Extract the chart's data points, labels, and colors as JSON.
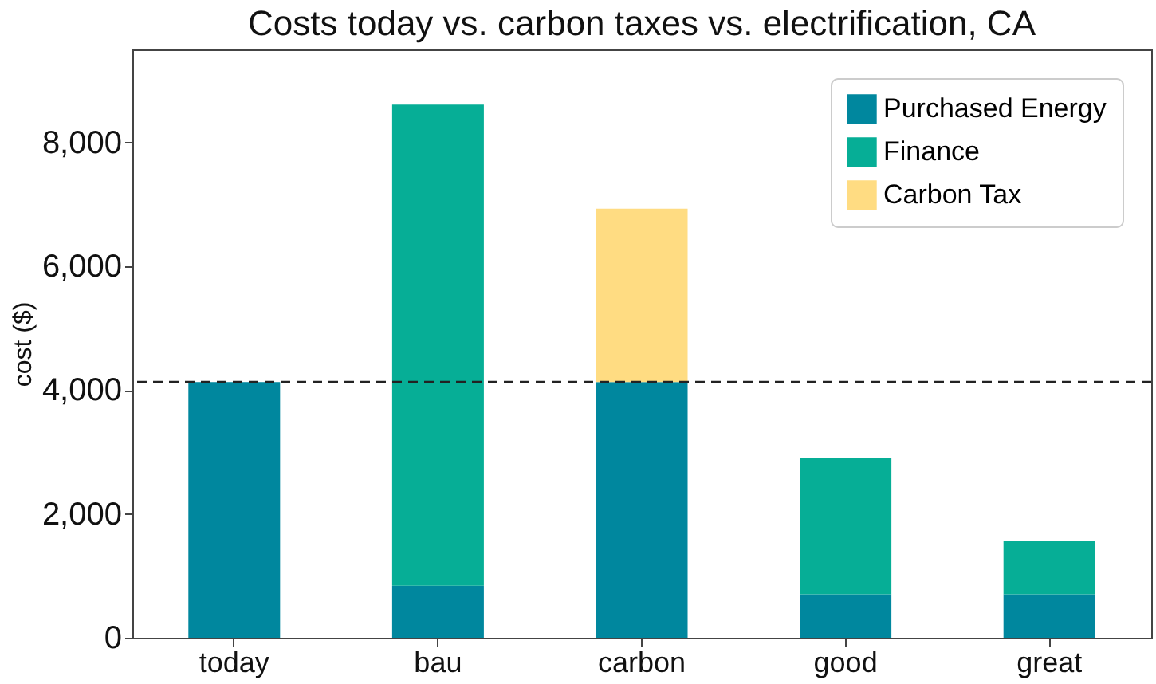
{
  "chart_data": {
    "type": "bar",
    "title": "Costs today vs. carbon taxes vs. electrification, CA",
    "ylabel": "cost ($)",
    "categories": [
      "today",
      "bau",
      "carbon",
      "good",
      "great"
    ],
    "stacked": true,
    "series": [
      {
        "name": "Purchased Energy",
        "color": "#00879e",
        "values": [
          4130,
          840,
          4130,
          700,
          700
        ]
      },
      {
        "name": "Finance",
        "color": "#06ae96",
        "values": [
          0,
          7770,
          0,
          2210,
          870
        ]
      },
      {
        "name": "Carbon Tax",
        "color": "#ffdc82",
        "values": [
          0,
          0,
          2800,
          0,
          0
        ]
      }
    ],
    "ylim": [
      0,
      9500
    ],
    "yticks": [
      {
        "value": 0,
        "label": "0"
      },
      {
        "value": 2000,
        "label": "2,000"
      },
      {
        "value": 4000,
        "label": "4,000"
      },
      {
        "value": 6000,
        "label": "6,000"
      },
      {
        "value": 8000,
        "label": "8,000"
      }
    ],
    "ref_lines": [
      {
        "axis": "y",
        "value": 4130,
        "color": "#222222",
        "line_style": "dashed"
      }
    ],
    "grid": false,
    "legend": "top right"
  }
}
